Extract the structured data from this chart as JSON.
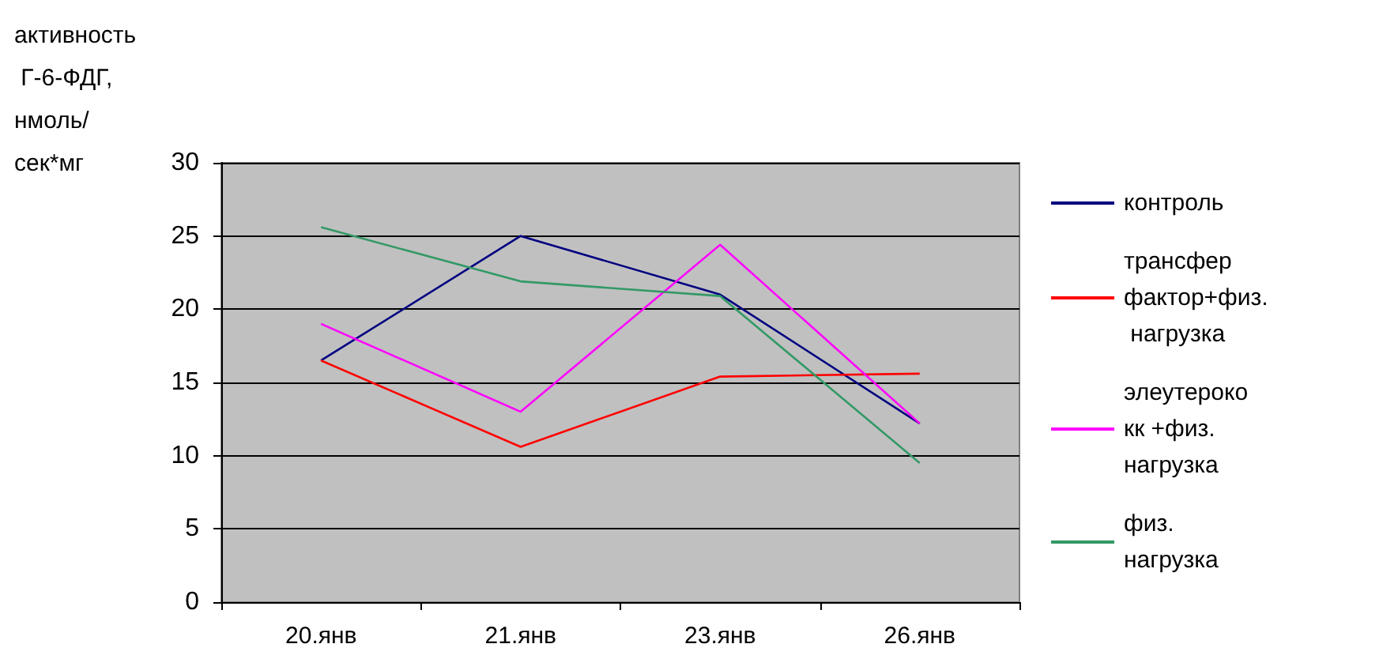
{
  "chart_data": {
    "type": "line",
    "ylabel": "активность Г-6-ФДГ, нмоль/сек*мг",
    "categories": [
      "20.янв",
      "21.янв",
      "23.янв",
      "26.янв"
    ],
    "series": [
      {
        "name": "контроль",
        "color": "#000080",
        "values": [
          16.5,
          25,
          21,
          12.2
        ]
      },
      {
        "name": "трансфер фактор+физ. нагрузка",
        "color": "#ff0000",
        "values": [
          16.5,
          10.6,
          15.4,
          15.6
        ]
      },
      {
        "name": "элеутерококк +физ. нагрузка",
        "color": "#ff00ff",
        "values": [
          19,
          13,
          24.4,
          12.2
        ]
      },
      {
        "name": "физ. нагрузка",
        "color": "#339966",
        "values": [
          25.6,
          21.9,
          20.9,
          9.5
        ]
      }
    ],
    "ylim": [
      0,
      30
    ],
    "yticks": [
      0,
      5,
      10,
      15,
      20,
      25,
      30
    ],
    "grid": "y",
    "legend": "right",
    "marker": "none",
    "line_style": "solid"
  }
}
